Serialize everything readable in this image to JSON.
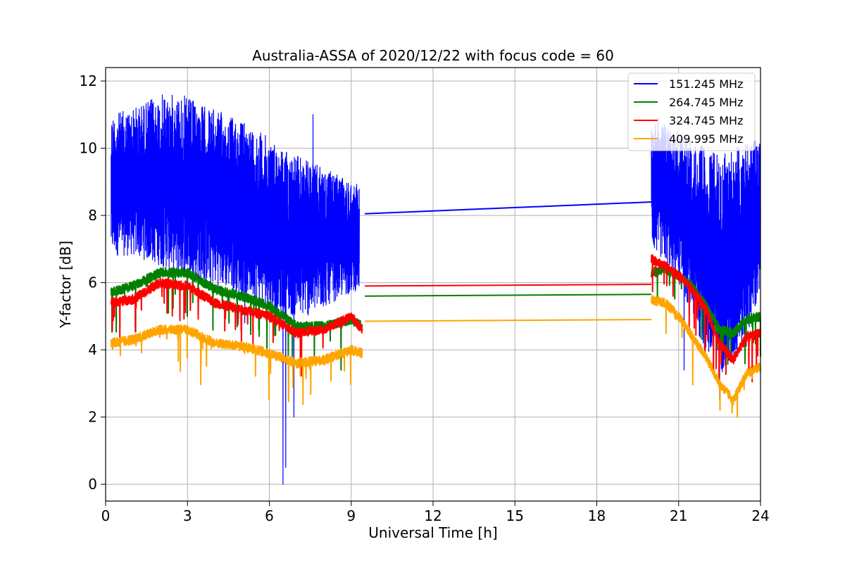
{
  "chart_data": {
    "type": "line",
    "title": "Australia-ASSA of 2020/12/22 with focus code = 60",
    "xlabel": "Universal Time [h]",
    "ylabel": "Y-factor [dB]",
    "xlim": [
      0,
      24
    ],
    "ylim": [
      -0.5,
      12.4
    ],
    "xticks": [
      0,
      3,
      6,
      9,
      12,
      15,
      18,
      21,
      24
    ],
    "xtick_labels": [
      "0",
      "3",
      "6",
      "9",
      "12",
      "15",
      "18",
      "21",
      "24"
    ],
    "yticks": [
      0,
      2,
      4,
      6,
      8,
      10,
      12
    ],
    "ytick_labels": [
      "0",
      "2",
      "4",
      "6",
      "8",
      "10",
      "12"
    ],
    "grid": true,
    "legend_position": "top-right",
    "series": [
      {
        "name": "151.245 MHz",
        "color": "#0000ff",
        "segments": [
          {
            "x": [
              0.2,
              1.0,
              2.0,
              2.8,
              3.5,
              4.5,
              5.5,
              6.5,
              7.5,
              8.5,
              9.3
            ],
            "mid": [
              9.0,
              9.0,
              9.2,
              9.0,
              8.8,
              8.6,
              8.4,
              8.0,
              7.6,
              7.6,
              7.6
            ],
            "upper": [
              11.0,
              11.2,
              11.6,
              11.6,
              11.3,
              11.0,
              10.6,
              10.0,
              9.6,
              9.2,
              8.9
            ],
            "lower": [
              6.8,
              6.8,
              6.5,
              6.2,
              6.0,
              5.8,
              5.5,
              5.0,
              5.0,
              5.5,
              5.8
            ],
            "spikes": [
              [
                6.5,
                0.0
              ],
              [
                6.6,
                0.5
              ],
              [
                6.9,
                2.0
              ],
              [
                7.6,
                11.0
              ],
              [
                5.1,
                4.8
              ]
            ]
          },
          {
            "x": [
              9.5,
              20.0
            ],
            "values": [
              8.05,
              8.4
            ]
          },
          {
            "x": [
              20.0,
              20.5,
              21.0,
              21.5,
              22.0,
              22.5,
              23.0,
              23.5,
              24.0
            ],
            "mid": [
              9.0,
              9.0,
              8.8,
              8.4,
              8.2,
              8.0,
              8.2,
              8.5,
              8.7
            ],
            "upper": [
              11.0,
              10.8,
              10.5,
              10.2,
              10.0,
              9.8,
              10.0,
              10.2,
              10.4
            ],
            "lower": [
              7.0,
              6.6,
              6.0,
              5.0,
              3.8,
              3.3,
              3.5,
              4.5,
              5.5
            ],
            "spikes": [
              [
                21.2,
                3.4
              ],
              [
                22.5,
                2.5
              ]
            ]
          }
        ]
      },
      {
        "name": "264.745 MHz",
        "color": "#008000",
        "segments": [
          {
            "x": [
              0.2,
              1.0,
              2.0,
              3.0,
              4.0,
              5.0,
              6.0,
              7.0,
              8.0,
              9.0,
              9.4
            ],
            "values": [
              5.7,
              5.9,
              6.3,
              6.3,
              5.8,
              5.6,
              5.3,
              4.7,
              4.7,
              4.9,
              4.7
            ]
          },
          {
            "x": [
              9.5,
              20.0
            ],
            "values": [
              5.6,
              5.65
            ]
          },
          {
            "x": [
              20.0,
              20.5,
              21.0,
              21.5,
              22.0,
              22.5,
              23.0,
              23.5,
              24.0
            ],
            "values": [
              6.3,
              6.4,
              6.2,
              5.9,
              5.3,
              4.6,
              4.5,
              4.9,
              5.0
            ]
          }
        ]
      },
      {
        "name": "324.745 MHz",
        "color": "#ff0000",
        "segments": [
          {
            "x": [
              0.2,
              1.0,
              2.0,
              3.0,
              4.0,
              5.0,
              6.0,
              7.0,
              8.0,
              9.0,
              9.4
            ],
            "values": [
              5.4,
              5.5,
              6.0,
              5.9,
              5.4,
              5.2,
              5.0,
              4.5,
              4.6,
              5.0,
              4.6
            ]
          },
          {
            "x": [
              9.5,
              20.0
            ],
            "values": [
              5.9,
              5.95
            ]
          },
          {
            "x": [
              20.0,
              20.5,
              21.0,
              21.5,
              22.0,
              22.5,
              23.0,
              23.5,
              24.0
            ],
            "values": [
              6.7,
              6.5,
              6.2,
              5.8,
              5.2,
              4.2,
              3.7,
              4.4,
              4.5
            ]
          }
        ]
      },
      {
        "name": "409.995 MHz",
        "color": "#ffa500",
        "segments": [
          {
            "x": [
              0.2,
              1.0,
              2.0,
              3.0,
              4.0,
              5.0,
              6.0,
              7.0,
              8.0,
              9.0,
              9.4
            ],
            "values": [
              4.2,
              4.3,
              4.6,
              4.6,
              4.2,
              4.1,
              3.9,
              3.6,
              3.7,
              4.0,
              3.9
            ]
          },
          {
            "x": [
              9.5,
              20.0
            ],
            "values": [
              4.85,
              4.9
            ]
          },
          {
            "x": [
              20.0,
              20.5,
              21.0,
              21.5,
              22.0,
              22.5,
              23.0,
              23.5,
              24.0
            ],
            "values": [
              5.5,
              5.4,
              5.0,
              4.4,
              3.8,
              3.0,
              2.5,
              3.3,
              3.5
            ]
          }
        ]
      }
    ]
  }
}
